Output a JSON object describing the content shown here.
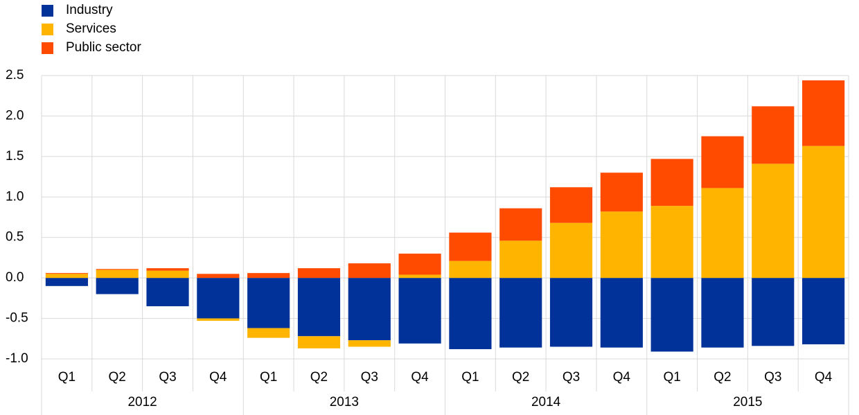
{
  "chart_data": {
    "type": "stacked-bar",
    "categories": [
      "Q1",
      "Q2",
      "Q3",
      "Q4",
      "Q1",
      "Q2",
      "Q3",
      "Q4",
      "Q1",
      "Q2",
      "Q3",
      "Q4",
      "Q1",
      "Q2",
      "Q3",
      "Q4"
    ],
    "groups": [
      "2012",
      "2013",
      "2014",
      "2015"
    ],
    "series": [
      {
        "name": "Industry",
        "color": "#003299",
        "values": [
          -0.1,
          -0.2,
          -0.35,
          -0.5,
          -0.62,
          -0.72,
          -0.77,
          -0.81,
          -0.88,
          -0.86,
          -0.85,
          -0.86,
          -0.91,
          -0.86,
          -0.84,
          -0.82
        ]
      },
      {
        "name": "Services",
        "color": "#ffb400",
        "values": [
          0.05,
          0.1,
          0.09,
          -0.03,
          -0.12,
          -0.15,
          -0.08,
          0.04,
          0.21,
          0.46,
          0.68,
          0.82,
          0.89,
          1.11,
          1.41,
          1.63
        ]
      },
      {
        "name": "Public sector",
        "color": "#ff4b00",
        "values": [
          0.01,
          0.01,
          0.03,
          0.05,
          0.06,
          0.12,
          0.18,
          0.26,
          0.35,
          0.4,
          0.44,
          0.48,
          0.58,
          0.64,
          0.71,
          0.81
        ]
      }
    ],
    "ylim": [
      -1.0,
      2.5
    ],
    "yticks": [
      2.5,
      {
        "value": 2.0,
        "label": "2.0"
      },
      1.5,
      {
        "value": 1.0,
        "label": "1.0"
      },
      0.5,
      {
        "value": 0.0,
        "label": "0.0"
      },
      -0.5,
      {
        "value": -1.0,
        "label": "-1.0"
      }
    ],
    "grid": true,
    "legend": "top-left"
  }
}
